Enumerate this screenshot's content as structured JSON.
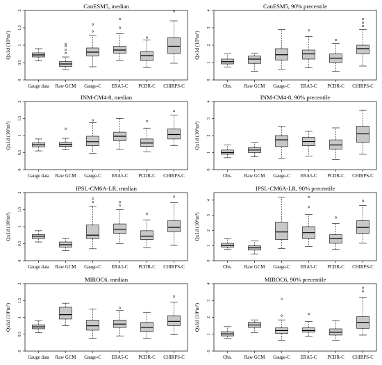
{
  "chart_data": [
    {
      "type": "box",
      "title": "CanESM5, median",
      "ylabel": "Qx1d (10³m³)",
      "ylim": [
        0,
        2
      ],
      "yticks": [
        "0",
        "0.5",
        "1",
        "1.5",
        "2"
      ],
      "categories": [
        "Gauge data",
        "Raw GCM",
        "Gauge-C",
        "ERA5-C",
        "PCDR-C",
        "CHIRPS-C"
      ],
      "boxes": [
        {
          "whisker_low": 0.55,
          "q1": 0.66,
          "median": 0.72,
          "q3": 0.78,
          "whisker_high": 0.9,
          "outliers": []
        },
        {
          "whisker_low": 0.3,
          "q1": 0.39,
          "median": 0.46,
          "q3": 0.53,
          "whisker_high": 0.66,
          "outliers": [
            0.77,
            0.87,
            0.97,
            1.03
          ]
        },
        {
          "whisker_low": 0.38,
          "q1": 0.69,
          "median": 0.8,
          "q3": 0.92,
          "whisker_high": 1.28,
          "outliers": [
            1.4,
            1.6
          ]
        },
        {
          "whisker_low": 0.55,
          "q1": 0.77,
          "median": 0.86,
          "q3": 0.97,
          "whisker_high": 1.33,
          "outliers": [
            1.5,
            1.75
          ]
        },
        {
          "whisker_low": 0.35,
          "q1": 0.56,
          "median": 0.7,
          "q3": 0.82,
          "whisker_high": 1.15,
          "outliers": [
            1.22
          ]
        },
        {
          "whisker_low": 0.48,
          "q1": 0.76,
          "median": 0.97,
          "q3": 1.22,
          "whisker_high": 1.7,
          "outliers": [
            1.98
          ]
        }
      ]
    },
    {
      "type": "box",
      "title": "CanESM5, 90% precentile",
      "ylabel": "Qx1d (10³m³)",
      "ylim": [
        0,
        4
      ],
      "yticks": [
        "0",
        "1",
        "2",
        "3",
        "4"
      ],
      "categories": [
        "Obs.",
        "Raw GCM",
        "Gauge-C",
        "ERA5-C",
        "PCDR-C",
        "CHIRPS-C"
      ],
      "boxes": [
        {
          "whisker_low": 0.75,
          "q1": 0.92,
          "median": 1.05,
          "q3": 1.2,
          "whisker_high": 1.5,
          "outliers": []
        },
        {
          "whisker_low": 0.5,
          "q1": 0.95,
          "median": 1.2,
          "q3": 1.38,
          "whisker_high": 1.55,
          "outliers": []
        },
        {
          "whisker_low": 0.6,
          "q1": 1.15,
          "median": 1.45,
          "q3": 1.8,
          "whisker_high": 2.9,
          "outliers": []
        },
        {
          "whisker_low": 0.7,
          "q1": 1.2,
          "median": 1.5,
          "q3": 1.72,
          "whisker_high": 2.5,
          "outliers": [
            2.85
          ]
        },
        {
          "whisker_low": 0.5,
          "q1": 1.0,
          "median": 1.25,
          "q3": 1.5,
          "whisker_high": 2.1,
          "outliers": [
            2.3
          ]
        },
        {
          "whisker_low": 0.8,
          "q1": 1.5,
          "median": 1.8,
          "q3": 2.0,
          "whisker_high": 2.9,
          "outliers": [
            3.1,
            3.3,
            3.5
          ]
        }
      ]
    },
    {
      "type": "box",
      "title": "INM-CM4-8, median",
      "ylabel": "Qx1d (10³m³)",
      "ylim": [
        0,
        2
      ],
      "yticks": [
        "0",
        "0.5",
        "1",
        "1.5",
        "2"
      ],
      "categories": [
        "Gauge data",
        "Raw GCM",
        "Gauge-C",
        "ERA5-C",
        "PCDR-C",
        "CHIRPS-C"
      ],
      "boxes": [
        {
          "whisker_low": 0.55,
          "q1": 0.67,
          "median": 0.73,
          "q3": 0.79,
          "whisker_high": 0.9,
          "outliers": []
        },
        {
          "whisker_low": 0.58,
          "q1": 0.68,
          "median": 0.74,
          "q3": 0.8,
          "whisker_high": 0.92,
          "outliers": [
            1.2
          ]
        },
        {
          "whisker_low": 0.48,
          "q1": 0.7,
          "median": 0.82,
          "q3": 0.98,
          "whisker_high": 1.38,
          "outliers": [
            1.45
          ]
        },
        {
          "whisker_low": 0.6,
          "q1": 0.85,
          "median": 0.98,
          "q3": 1.1,
          "whisker_high": 1.5,
          "outliers": []
        },
        {
          "whisker_low": 0.52,
          "q1": 0.68,
          "median": 0.78,
          "q3": 0.9,
          "whisker_high": 1.22,
          "outliers": [
            1.42
          ]
        },
        {
          "whisker_low": 0.7,
          "q1": 0.9,
          "median": 1.03,
          "q3": 1.2,
          "whisker_high": 1.6,
          "outliers": [
            1.72
          ]
        }
      ]
    },
    {
      "type": "box",
      "title": "INM-CM4-8, 90% precentile",
      "ylabel": "Qx1d (10³m³)",
      "ylim": [
        0,
        4
      ],
      "yticks": [
        "0",
        "1",
        "2",
        "3",
        "4"
      ],
      "categories": [
        "Obs.",
        "Raw GCM",
        "Gauge-C",
        "ERA5-C",
        "PCDR-C",
        "CHIRPS-C"
      ],
      "boxes": [
        {
          "whisker_low": 0.7,
          "q1": 0.9,
          "median": 1.0,
          "q3": 1.15,
          "whisker_high": 1.45,
          "outliers": []
        },
        {
          "whisker_low": 0.75,
          "q1": 1.0,
          "median": 1.15,
          "q3": 1.3,
          "whisker_high": 1.6,
          "outliers": []
        },
        {
          "whisker_low": 0.65,
          "q1": 1.35,
          "median": 1.75,
          "q3": 2.0,
          "whisker_high": 2.55,
          "outliers": []
        },
        {
          "whisker_low": 0.8,
          "q1": 1.4,
          "median": 1.65,
          "q3": 1.9,
          "whisker_high": 2.25,
          "outliers": []
        },
        {
          "whisker_low": 0.6,
          "q1": 1.2,
          "median": 1.45,
          "q3": 1.75,
          "whisker_high": 2.45,
          "outliers": []
        },
        {
          "whisker_low": 0.9,
          "q1": 1.6,
          "median": 2.1,
          "q3": 2.55,
          "whisker_high": 3.5,
          "outliers": []
        }
      ]
    },
    {
      "type": "box",
      "title": "IPSL-CM6A-LR, median",
      "ylabel": "Qx1d (10³m³)",
      "ylim": [
        0,
        2
      ],
      "yticks": [
        "0",
        "0.5",
        "1",
        "1.5",
        "2"
      ],
      "categories": [
        "Gauge data",
        "Raw GCM",
        "Gauge-C",
        "ERA5-C",
        "PCDR-C",
        "CHIRPS-C"
      ],
      "boxes": [
        {
          "whisker_low": 0.55,
          "q1": 0.65,
          "median": 0.72,
          "q3": 0.77,
          "whisker_high": 0.88,
          "outliers": []
        },
        {
          "whisker_low": 0.3,
          "q1": 0.4,
          "median": 0.47,
          "q3": 0.55,
          "whisker_high": 0.65,
          "outliers": []
        },
        {
          "whisker_low": 0.35,
          "q1": 0.65,
          "median": 0.75,
          "q3": 1.05,
          "whisker_high": 1.6,
          "outliers": [
            1.72,
            1.82
          ]
        },
        {
          "whisker_low": 0.5,
          "q1": 0.8,
          "median": 0.92,
          "q3": 1.08,
          "whisker_high": 1.5,
          "outliers": [
            1.62,
            1.72
          ]
        },
        {
          "whisker_low": 0.38,
          "q1": 0.62,
          "median": 0.72,
          "q3": 0.88,
          "whisker_high": 1.2,
          "outliers": [
            1.38
          ]
        },
        {
          "whisker_low": 0.45,
          "q1": 0.85,
          "median": 0.98,
          "q3": 1.18,
          "whisker_high": 1.7,
          "outliers": [
            1.88
          ]
        }
      ]
    },
    {
      "type": "box",
      "title": "IPSL-CM6A-LR, 90% precentile",
      "ylabel": "Qx1d (10³m³)",
      "ylim": [
        0,
        4.5
      ],
      "yticks": [
        "0",
        "1",
        "2",
        "3",
        "4"
      ],
      "categories": [
        "Obs.",
        "Raw GCM",
        "Gauge-C",
        "ERA5-C",
        "PCDR-C",
        "CHIRPS-C"
      ],
      "boxes": [
        {
          "whisker_low": 0.75,
          "q1": 0.9,
          "median": 1.0,
          "q3": 1.15,
          "whisker_high": 1.45,
          "outliers": []
        },
        {
          "whisker_low": 0.45,
          "q1": 0.7,
          "median": 0.85,
          "q3": 0.98,
          "whisker_high": 1.3,
          "outliers": []
        },
        {
          "whisker_low": 0.8,
          "q1": 1.4,
          "median": 1.9,
          "q3": 2.55,
          "whisker_high": 4.2,
          "outliers": []
        },
        {
          "whisker_low": 0.95,
          "q1": 1.45,
          "median": 1.85,
          "q3": 2.25,
          "whisker_high": 3.05,
          "outliers": [
            3.55,
            4.2
          ]
        },
        {
          "whisker_low": 0.75,
          "q1": 1.15,
          "median": 1.45,
          "q3": 1.72,
          "whisker_high": 2.45,
          "outliers": [
            2.85
          ]
        },
        {
          "whisker_low": 1.15,
          "q1": 1.8,
          "median": 2.2,
          "q3": 2.65,
          "whisker_high": 3.65,
          "outliers": [
            3.95
          ]
        }
      ]
    },
    {
      "type": "box",
      "title": "MIROC6, median",
      "ylabel": "Qx1d (10³m³)",
      "ylim": [
        0,
        2
      ],
      "yticks": [
        "0",
        "0.5",
        "1",
        "1.5",
        "2"
      ],
      "categories": [
        "Gauge data",
        "Raw GCM",
        "Gauge-C",
        "ERA5-C",
        "PCDR-C",
        "CHIRPS-C"
      ],
      "boxes": [
        {
          "whisker_low": 0.55,
          "q1": 0.66,
          "median": 0.72,
          "q3": 0.78,
          "whisker_high": 0.9,
          "outliers": []
        },
        {
          "whisker_low": 0.75,
          "q1": 0.95,
          "median": 1.08,
          "q3": 1.3,
          "whisker_high": 1.42,
          "outliers": []
        },
        {
          "whisker_low": 0.38,
          "q1": 0.62,
          "median": 0.75,
          "q3": 0.92,
          "whisker_high": 1.25,
          "outliers": []
        },
        {
          "whisker_low": 0.45,
          "q1": 0.7,
          "median": 0.8,
          "q3": 0.92,
          "whisker_high": 1.2,
          "outliers": [
            1.28
          ]
        },
        {
          "whisker_low": 0.38,
          "q1": 0.58,
          "median": 0.7,
          "q3": 0.85,
          "whisker_high": 1.15,
          "outliers": []
        },
        {
          "whisker_low": 0.48,
          "q1": 0.75,
          "median": 0.88,
          "q3": 1.05,
          "whisker_high": 1.45,
          "outliers": [
            1.62
          ]
        }
      ]
    },
    {
      "type": "box",
      "title": "MIROC6, 90% precentile",
      "ylabel": "Qx1d (10³m³)",
      "ylim": [
        0,
        4
      ],
      "yticks": [
        "0",
        "1",
        "2",
        "3",
        "4"
      ],
      "categories": [
        "Obs.",
        "Raw GCM",
        "Gauge-C",
        "ERA5-C",
        "PCDR-C",
        "CHIRPS-C"
      ],
      "boxes": [
        {
          "whisker_low": 0.75,
          "q1": 0.9,
          "median": 1.02,
          "q3": 1.15,
          "whisker_high": 1.45,
          "outliers": []
        },
        {
          "whisker_low": 1.1,
          "q1": 1.4,
          "median": 1.55,
          "q3": 1.7,
          "whisker_high": 1.85,
          "outliers": []
        },
        {
          "whisker_low": 0.65,
          "q1": 1.05,
          "median": 1.22,
          "q3": 1.38,
          "whisker_high": 1.85,
          "outliers": [
            2.1,
            3.1
          ]
        },
        {
          "whisker_low": 0.85,
          "q1": 1.12,
          "median": 1.22,
          "q3": 1.38,
          "whisker_high": 1.75,
          "outliers": [
            2.2
          ]
        },
        {
          "whisker_low": 0.65,
          "q1": 0.95,
          "median": 1.12,
          "q3": 1.32,
          "whisker_high": 1.8,
          "outliers": []
        },
        {
          "whisker_low": 0.95,
          "q1": 1.35,
          "median": 1.7,
          "q3": 2.05,
          "whisker_high": 3.2,
          "outliers": [
            3.55,
            3.75
          ]
        }
      ]
    }
  ]
}
